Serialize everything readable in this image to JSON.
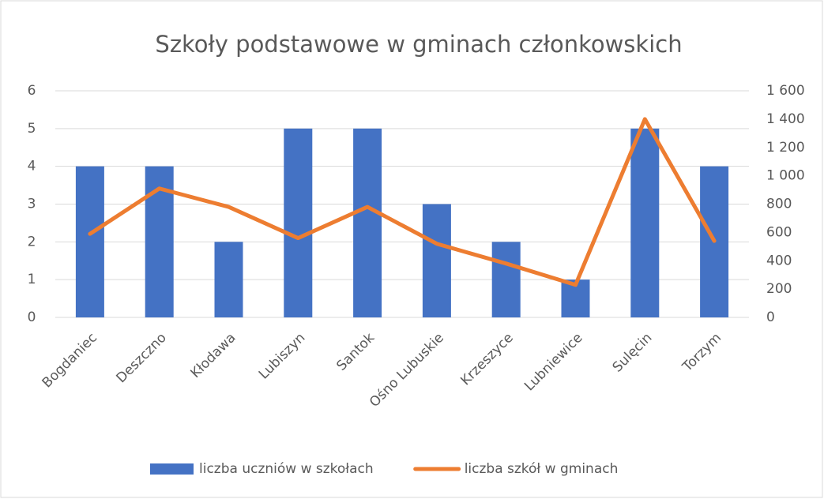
{
  "chart_data": {
    "type": "bar",
    "title": "Szkoły podstawowe w gminach członkowskich",
    "categories": [
      "Bogdaniec",
      "Deszczno",
      "Kłodawa",
      "Lubiszyn",
      "Santok",
      "Ośno Lubuskie",
      "Krzeszyce",
      "Lubniewice",
      "Sulęcin",
      "Torzym"
    ],
    "series": [
      {
        "name": "liczba uczniów w szkołach",
        "type": "bar",
        "color": "#4472c4",
        "values": [
          4,
          4,
          2,
          5,
          5,
          3,
          2,
          1,
          5,
          4
        ]
      },
      {
        "name": "liczba szkół w gminach",
        "type": "line",
        "axis": "y2",
        "color": "#ed7d31",
        "values": [
          590,
          910,
          780,
          560,
          780,
          520,
          380,
          230,
          1400,
          540
        ]
      }
    ],
    "ylim": [
      0,
      6
    ],
    "yticks": [
      0,
      1,
      2,
      3,
      4,
      5,
      6
    ],
    "y2lim": [
      0,
      1600
    ],
    "y2ticks": [
      0,
      200,
      400,
      600,
      800,
      {
        "value": 1000,
        "label": "1 000"
      },
      {
        "value": 1200,
        "label": "1 200"
      },
      {
        "value": 1400,
        "label": "1 400"
      },
      {
        "value": 1600,
        "label": "1 600"
      }
    ],
    "grid": true,
    "legend": "bottom"
  }
}
